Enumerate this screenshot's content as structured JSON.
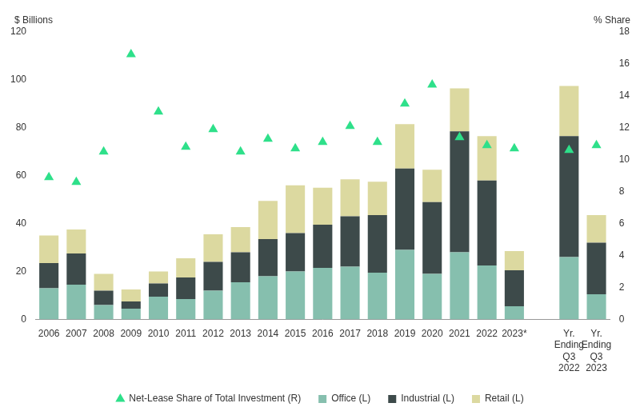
{
  "chart_data": {
    "type": "bar",
    "stacked": true,
    "grid": false,
    "legend": "bottom",
    "y_label": "$ Billions",
    "y2_label": "% Share",
    "categories": [
      "2006",
      "2007",
      "2008",
      "2009",
      "2010",
      "2011",
      "2012",
      "2013",
      "2014",
      "2015",
      "2016",
      "2017",
      "2018",
      "2019",
      "2020",
      "2021",
      "2022",
      "2023*",
      null,
      "Yr. Ending Q3 2022",
      "Yr. Ending Q3 2023"
    ],
    "ylim": [
      0,
      120
    ],
    "yticks": [
      0,
      20,
      40,
      60,
      80,
      100,
      120
    ],
    "y2lim": [
      0,
      18
    ],
    "y2ticks": [
      0,
      2,
      4,
      6,
      8,
      10,
      12,
      14,
      16,
      18
    ],
    "series": [
      {
        "name": "Office (L)",
        "color": "#86bfae",
        "type": "bar",
        "values": [
          13,
          14.5,
          6,
          4.5,
          9.5,
          8.5,
          12,
          15.5,
          18,
          20,
          21.5,
          22,
          19.5,
          29,
          19,
          28,
          22.5,
          5.5,
          null,
          26,
          10.5
        ]
      },
      {
        "name": "Industrial (L)",
        "color": "#3d4a4a",
        "type": "bar",
        "values": [
          10.5,
          13,
          6,
          3,
          5.5,
          9,
          12,
          12.5,
          15.5,
          16,
          18,
          21,
          24,
          34,
          30,
          50.5,
          35.5,
          15,
          null,
          50.5,
          21.5
        ]
      },
      {
        "name": "Retail (L)",
        "color": "#dcd9a0",
        "type": "bar",
        "values": [
          11.5,
          10,
          7,
          5,
          5,
          8,
          11.5,
          10.5,
          16,
          20,
          15.5,
          15.5,
          14,
          18.5,
          13.5,
          18,
          18.5,
          8,
          null,
          21,
          11.5
        ]
      },
      {
        "name": "Net-Lease Share of Total Investment (R)",
        "color": "#2ee08a",
        "type": "line",
        "marker": "triangle",
        "line_style": "none",
        "axis": "y2",
        "values": [
          8.9,
          8.6,
          10.5,
          16.6,
          13,
          10.8,
          11.9,
          10.5,
          11.3,
          10.7,
          11.1,
          12.1,
          11.1,
          13.5,
          14.7,
          11.4,
          10.9,
          10.7,
          null,
          10.6,
          10.9
        ]
      }
    ]
  }
}
